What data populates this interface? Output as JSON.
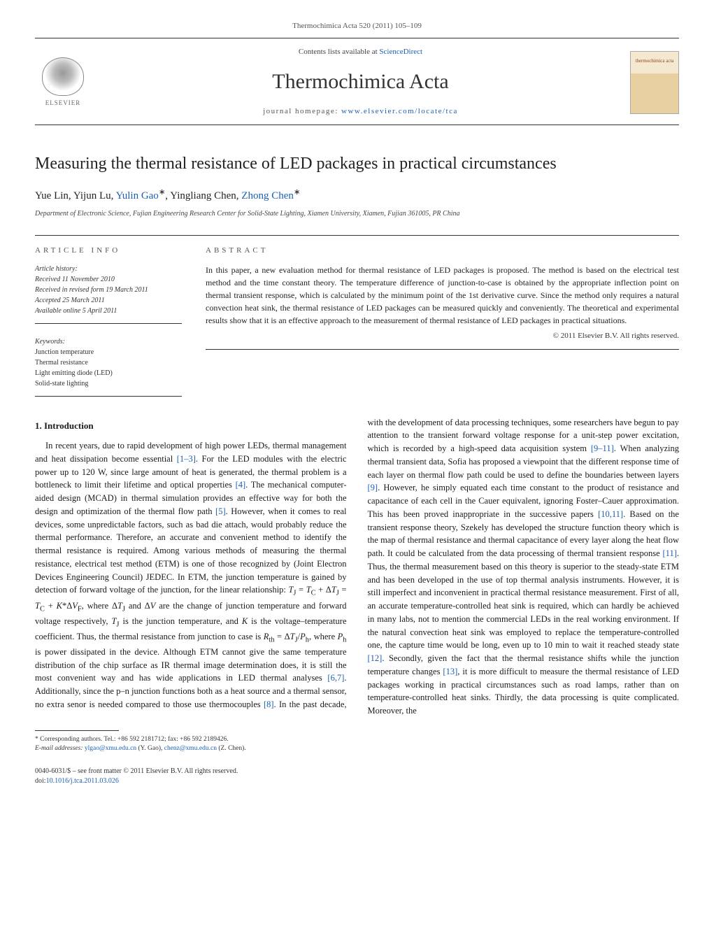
{
  "journal": {
    "citation_line": "Thermochimica Acta 520 (2011) 105–109",
    "contents_prefix": "Contents lists available at ",
    "contents_link": "ScienceDirect",
    "title": "Thermochimica Acta",
    "homepage_prefix": "journal homepage: ",
    "homepage_url": "www.elsevier.com/locate/tca",
    "publisher": "ELSEVIER",
    "cover_text": "thermochimica acta"
  },
  "article": {
    "title": "Measuring the thermal resistance of LED packages in practical circumstances",
    "authors_html": "Yue Lin, Yijun Lu, Yulin Gao*, Yingliang Chen, Zhong Chen*",
    "affiliation": "Department of Electronic Science, Fujian Engineering Research Center for Solid-State Lighting, Xiamen University, Xiamen, Fujian 361005, PR China"
  },
  "info": {
    "section_label": "article info",
    "history_head": "Article history:",
    "received": "Received 11 November 2010",
    "revised": "Received in revised form 19 March 2011",
    "accepted": "Accepted 25 March 2011",
    "online": "Available online 5 April 2011",
    "keywords_head": "Keywords:",
    "keywords": [
      "Junction temperature",
      "Thermal resistance",
      "Light emitting diode (LED)",
      "Solid-state lighting"
    ]
  },
  "abstract": {
    "section_label": "abstract",
    "text": "In this paper, a new evaluation method for thermal resistance of LED packages is proposed. The method is based on the electrical test method and the time constant theory. The temperature difference of junction-to-case is obtained by the appropriate inflection point on thermal transient response, which is calculated by the minimum point of the 1st derivative curve. Since the method only requires a natural convection heat sink, the thermal resistance of LED packages can be measured quickly and conveniently. The theoretical and experimental results show that it is an effective approach to the measurement of thermal resistance of LED packages in practical situations.",
    "copyright": "© 2011 Elsevier B.V. All rights reserved."
  },
  "body": {
    "heading1": "1. Introduction",
    "p1": "In recent years, due to rapid development of high power LEDs, thermal management and heat dissipation become essential [1–3]. For the LED modules with the electric power up to 120 W, since large amount of heat is generated, the thermal problem is a bottleneck to limit their lifetime and optical properties [4]. The mechanical computer-aided design (MCAD) in thermal simulation provides an effective way for both the design and optimization of the thermal flow path [5]. However, when it comes to real devices, some unpredictable factors, such as bad die attach, would probably reduce the thermal performance. Therefore, an accurate and convenient method to identify the thermal resistance is required. Among various methods of measuring the thermal resistance, electrical test method (ETM) is one of those recognized by (Joint Electron Devices Engineering Council) JEDEC. In ETM, the junction temperature is gained by detection of forward voltage of the junction, for the linear relationship: TJ = TC + ΔTJ = TC + K*ΔVF, where ΔTJ and ΔV are the change of junction temperature and forward voltage respectively, TJ is the junction temperature, and K is the voltage–temperature coefficient. Thus, the thermal resistance from junction to case is Rth = ΔTJ/Ph, where Ph is power dissipated in the device. Although ETM cannot give the same temperature distribution of the chip surface as IR thermal image determination does, it is still the most convenient way and has wide applications in LED thermal analyses [6,7]. Additionally, since the p–n junction functions both as a heat",
    "p2": "source and a thermal sensor, no extra senor is needed compared to those use thermocouples [8]. In the past decade, with the development of data processing techniques, some researchers have begun to pay attention to the transient forward voltage response for a unit-step power excitation, which is recorded by a high-speed data acquisition system [9–11]. When analyzing thermal transient data, Sofia has proposed a viewpoint that the different response time of each layer on thermal flow path could be used to define the boundaries between layers [9]. However, he simply equated each time constant to the product of resistance and capacitance of each cell in the Cauer equivalent, ignoring Foster–Cauer approximation. This has been proved inappropriate in the successive papers [10,11]. Based on the transient response theory, Szekely has developed the structure function theory which is the map of thermal resistance and thermal capacitance of every layer along the heat flow path. It could be calculated from the data processing of thermal transient response [11]. Thus, the thermal measurement based on this theory is superior to the steady-state ETM and has been developed in the use of top thermal analysis instruments. However, it is still imperfect and inconvenient in practical thermal resistance measurement. First of all, an accurate temperature-controlled heat sink is required, which can hardly be achieved in many labs, not to mention the commercial LEDs in the real working environment. If the natural convection heat sink was employed to replace the temperature-controlled one, the capture time would be long, even up to 10 min to wait it reached steady state [12]. Secondly, given the fact that the thermal resistance shifts while the junction temperature changes [13], it is more difficult to measure the thermal resistance of LED packages working in practical circumstances such as road lamps, rather than on temperature-controlled heat sinks. Thirdly, the data processing is quite complicated. Moreover, the"
  },
  "footnotes": {
    "corr": "* Corresponding authors. Tel.: +86 592 2181712; fax: +86 592 2189426.",
    "email_label": "E-mail addresses: ",
    "email1": "ylgao@xmu.edu.cn",
    "email1_who": " (Y. Gao), ",
    "email2": "chenz@xmu.edu.cn",
    "email2_who": " (Z. Chen)."
  },
  "footer": {
    "issn": "0040-6031/$ – see front matter © 2011 Elsevier B.V. All rights reserved.",
    "doi_label": "doi:",
    "doi": "10.1016/j.tca.2011.03.026"
  },
  "colors": {
    "link": "#1a5fb4",
    "text": "#1a1a1a",
    "rule": "#333333"
  }
}
